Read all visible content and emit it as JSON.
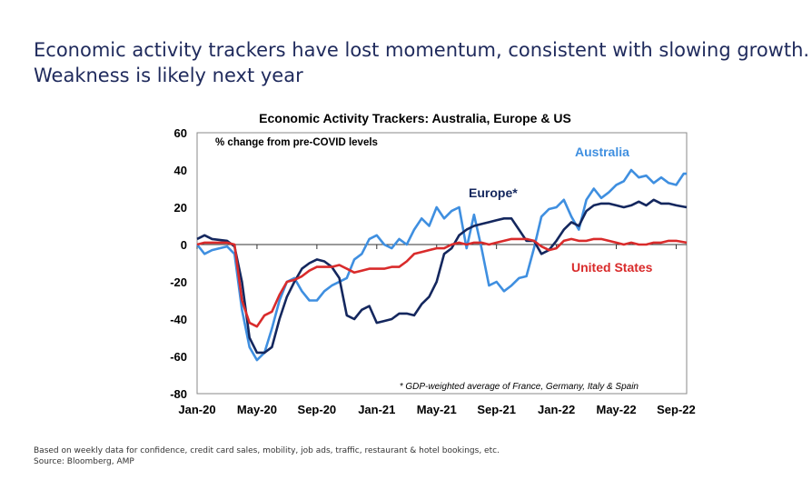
{
  "headline": [
    "Economic activity trackers have lost momentum, consistent with slowing growth.",
    "Weakness is likely next year"
  ],
  "footer": [
    "Based on weekly data for confidence, credit card sales, mobility, job ads, traffic, restaurant & hotel bookings, etc.",
    "Source: Bloomberg, AMP"
  ],
  "chart_data": {
    "type": "line",
    "title": "Economic Activity Trackers: Australia, Europe & US",
    "subtitle": "% change from pre-COVID levels",
    "note": "* GDP-weighted average of France, Germany, Italy & Spain",
    "xlabel": "",
    "ylabel": "",
    "x_unit": "months since Jan-20",
    "xlim": [
      0,
      32.7
    ],
    "ylim": [
      -80,
      60
    ],
    "yticks": [
      60,
      40,
      20,
      0,
      -20,
      -40,
      -60,
      -80
    ],
    "xticks": [
      {
        "m": 0,
        "label": "Jan-20"
      },
      {
        "m": 4,
        "label": "May-20"
      },
      {
        "m": 8,
        "label": "Sep-20"
      },
      {
        "m": 12,
        "label": "Jan-21"
      },
      {
        "m": 16,
        "label": "May-21"
      },
      {
        "m": 20,
        "label": "Sep-21"
      },
      {
        "m": 24,
        "label": "Jan-22"
      },
      {
        "m": 28,
        "label": "May-22"
      },
      {
        "m": 32,
        "label": "Sep-22"
      }
    ],
    "series": [
      {
        "name": "Australia",
        "color": "#3f8fe0",
        "x": [
          0,
          0.5,
          1,
          2,
          2.5,
          3,
          3.5,
          4,
          4.5,
          5,
          5.5,
          6,
          6.5,
          7,
          7.5,
          8,
          8.5,
          9,
          10,
          10.5,
          11,
          11.5,
          12,
          12.5,
          13,
          13.5,
          14,
          14.5,
          15,
          15.5,
          16,
          16.5,
          17,
          17.5,
          18,
          18.5,
          19,
          19.5,
          20,
          20.5,
          21,
          21.5,
          22,
          22.5,
          23,
          23.5,
          24,
          24.5,
          25,
          25.5,
          26,
          26.5,
          27,
          27.5,
          28,
          28.5,
          29,
          29.5,
          30,
          30.5,
          31,
          31.5,
          32,
          32.5,
          32.7
        ],
        "y": [
          0,
          -5,
          -3,
          -1,
          -5,
          -35,
          -55,
          -62,
          -58,
          -45,
          -30,
          -20,
          -18,
          -25,
          -30,
          -30,
          -25,
          -22,
          -18,
          -8,
          -5,
          3,
          5,
          0,
          -2,
          3,
          0,
          8,
          14,
          10,
          20,
          14,
          18,
          20,
          -2,
          16,
          -2,
          -22,
          -20,
          -25,
          -22,
          -18,
          -17,
          -2,
          15,
          19,
          20,
          24,
          15,
          8,
          24,
          30,
          25,
          28,
          32,
          34,
          40,
          36,
          37,
          33,
          36,
          33,
          32,
          38,
          38
        ]
      },
      {
        "name": "Europe*",
        "color": "#14275e",
        "x": [
          0,
          0.5,
          1,
          2,
          2.5,
          3,
          3.5,
          4,
          4.5,
          5,
          5.5,
          6,
          6.5,
          7,
          7.5,
          8,
          8.5,
          9,
          9.5,
          10,
          10.5,
          11,
          11.5,
          12,
          12.5,
          13,
          13.5,
          14,
          14.5,
          15,
          15.5,
          16,
          16.5,
          17,
          17.5,
          18,
          18.5,
          19,
          19.5,
          20,
          20.5,
          21,
          21.5,
          22,
          22.5,
          23,
          23.5,
          24,
          24.5,
          25,
          25.5,
          26,
          26.5,
          27,
          27.5,
          28,
          28.5,
          29,
          29.5,
          30,
          30.5,
          31,
          31.5,
          32,
          32.7
        ],
        "y": [
          3,
          5,
          3,
          2,
          -1,
          -20,
          -50,
          -58,
          -58,
          -55,
          -40,
          -28,
          -20,
          -13,
          -10,
          -8,
          -9,
          -12,
          -18,
          -38,
          -40,
          -35,
          -33,
          -42,
          -41,
          -40,
          -37,
          -37,
          -38,
          -32,
          -28,
          -20,
          -5,
          -2,
          5,
          8,
          10,
          11,
          12,
          13,
          14,
          14,
          8,
          2,
          2,
          -5,
          -3,
          2,
          8,
          12,
          10,
          18,
          21,
          22,
          22,
          21,
          20,
          21,
          23,
          21,
          24,
          22,
          22,
          21,
          20
        ]
      },
      {
        "name": "United States",
        "color": "#d92b2b",
        "x": [
          0,
          0.5,
          1,
          2,
          2.5,
          3,
          3.5,
          4,
          4.5,
          5,
          5.5,
          6,
          6.5,
          7,
          7.5,
          8,
          8.5,
          9,
          9.5,
          10,
          10.5,
          11,
          11.5,
          12,
          12.5,
          13,
          13.5,
          14,
          14.5,
          15,
          15.5,
          16,
          16.5,
          17,
          17.5,
          18,
          18.5,
          19,
          19.5,
          20,
          20.5,
          21,
          21.5,
          22,
          22.5,
          23,
          23.5,
          24,
          24.5,
          25,
          25.5,
          26,
          26.5,
          27,
          27.5,
          28,
          28.5,
          29,
          29.5,
          30,
          30.5,
          31,
          31.5,
          32,
          32.7
        ],
        "y": [
          0,
          1,
          1,
          1,
          0,
          -30,
          -42,
          -44,
          -38,
          -36,
          -27,
          -20,
          -19,
          -17,
          -14,
          -12,
          -12,
          -12,
          -11,
          -13,
          -15,
          -14,
          -13,
          -13,
          -13,
          -12,
          -12,
          -9,
          -5,
          -4,
          -3,
          -2,
          -2,
          0,
          1,
          0,
          1,
          1,
          0,
          1,
          2,
          3,
          3,
          3,
          2,
          -1,
          -3,
          -2,
          2,
          3,
          2,
          2,
          3,
          3,
          2,
          1,
          0,
          1,
          0,
          0,
          1,
          1,
          2,
          2,
          1
        ]
      }
    ]
  }
}
